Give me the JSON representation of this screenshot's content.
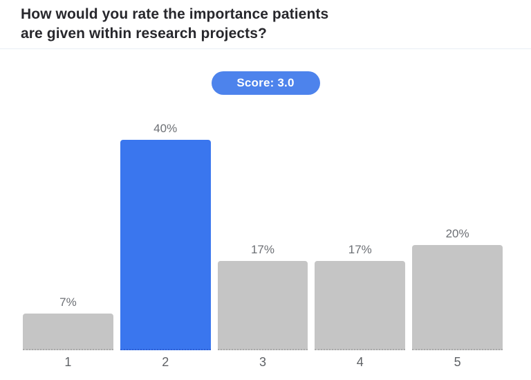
{
  "header": {
    "title_lines": [
      "How would you rate the importance patients",
      "are given within research projects?"
    ]
  },
  "score_badge": {
    "label": "Score: 3.0",
    "background": "#4d83ec",
    "text_color": "#ffffff"
  },
  "chart_data": {
    "type": "bar",
    "title": "How would you rate the importance patients are given within research projects?",
    "categories": [
      "1",
      "2",
      "3",
      "4",
      "5"
    ],
    "values": [
      7,
      40,
      17,
      17,
      20
    ],
    "value_labels": [
      "7%",
      "40%",
      "17%",
      "17%",
      "20%"
    ],
    "highlight_index": 1,
    "bar_color_default": "#c5c5c5",
    "bar_color_highlight": "#3a76ee",
    "bar_baseline_default": "#a9a9a9",
    "bar_baseline_highlight": "#2e5fd3",
    "xlabel": "",
    "ylabel": "",
    "ylim": [
      0,
      42
    ],
    "grid": false,
    "legend": "none"
  }
}
